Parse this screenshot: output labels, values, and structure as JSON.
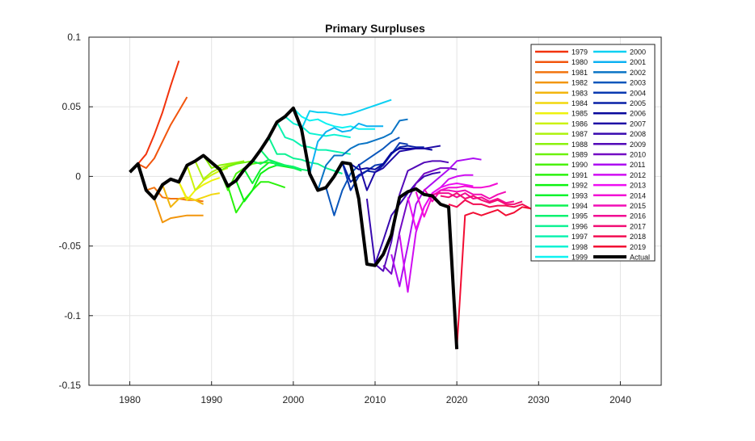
{
  "chart_data": {
    "type": "line",
    "title": "Primary Surpluses",
    "xlabel": "",
    "ylabel": "",
    "xlim": [
      1975,
      2045
    ],
    "ylim": [
      -0.15,
      0.1
    ],
    "xticks": [
      1980,
      1990,
      2000,
      2010,
      2020,
      2030,
      2040
    ],
    "xtick_labels": [
      "1980",
      "1990",
      "2000",
      "2010",
      "2020",
      "2030",
      "2040"
    ],
    "yticks": [
      0.1,
      0.05,
      0,
      -0.05,
      -0.1,
      -0.15
    ],
    "ytick_labels": [
      "0.1",
      "0.05",
      "0",
      "-0.05",
      "-0.1",
      "-0.15"
    ],
    "grid": true,
    "legend_position": "top-right",
    "actual": {
      "name": "Actual",
      "color": "#000000",
      "start": 1980,
      "values": [
        0.003,
        0.009,
        -0.01,
        -0.016,
        -0.006,
        -0.002,
        -0.004,
        0.008,
        0.011,
        0.015,
        0.01,
        0.005,
        -0.007,
        -0.003,
        0.005,
        0.011,
        0.019,
        0.028,
        0.039,
        0.043,
        0.049,
        0.034,
        0.002,
        -0.01,
        -0.008,
        0.0,
        0.01,
        0.009,
        -0.016,
        -0.063,
        -0.064,
        -0.056,
        -0.042,
        -0.015,
        -0.011,
        -0.009,
        -0.013,
        -0.014,
        -0.02,
        -0.022,
        -0.124
      ]
    },
    "series": [
      {
        "name": "1979",
        "start": 1981,
        "values": [
          0.009,
          0.016,
          0.03,
          0.046,
          0.065,
          0.083
        ]
      },
      {
        "name": "1980",
        "start": 1981,
        "values": [
          0.009,
          0.006,
          0.013,
          0.025,
          0.037,
          0.047,
          0.057
        ]
      },
      {
        "name": "1981",
        "start": 1982,
        "values": [
          -0.01,
          -0.008,
          -0.015,
          -0.016,
          -0.016,
          -0.017,
          -0.017,
          -0.018
        ]
      },
      {
        "name": "1982",
        "start": 1983,
        "values": [
          -0.016,
          -0.033,
          -0.03,
          -0.029,
          -0.028,
          -0.028,
          -0.028
        ]
      },
      {
        "name": "1983",
        "start": 1984,
        "values": [
          -0.006,
          -0.022,
          -0.016,
          -0.015,
          -0.017,
          -0.02
        ]
      },
      {
        "name": "1984",
        "start": 1985,
        "values": [
          -0.002,
          -0.004,
          -0.016,
          -0.017,
          -0.015,
          -0.013,
          -0.012
        ]
      },
      {
        "name": "1985",
        "start": 1986,
        "values": [
          -0.004,
          -0.017,
          -0.01,
          -0.006,
          -0.003,
          -0.001
        ]
      },
      {
        "name": "1986",
        "start": 1987,
        "values": [
          0.008,
          -0.01,
          -0.003,
          0.001,
          0.004,
          0.006
        ]
      },
      {
        "name": "1987",
        "start": 1988,
        "values": [
          0.011,
          -0.002,
          0.003,
          0.006,
          0.008,
          0.009
        ]
      },
      {
        "name": "1988",
        "start": 1989,
        "values": [
          0.015,
          0.006,
          0.008,
          0.009,
          0.01,
          0.011
        ]
      },
      {
        "name": "1989",
        "start": 1990,
        "values": [
          0.01,
          0.004,
          0.007,
          0.009,
          0.01,
          0.011
        ]
      },
      {
        "name": "1990",
        "start": 1991,
        "values": [
          0.005,
          -0.01,
          0.002,
          0.006,
          0.009,
          0.01,
          0.01
        ]
      },
      {
        "name": "1991",
        "start": 1992,
        "values": [
          -0.007,
          -0.026,
          -0.017,
          -0.01,
          -0.004,
          -0.004,
          -0.006,
          -0.008
        ]
      },
      {
        "name": "1992",
        "start": 1993,
        "values": [
          -0.003,
          -0.018,
          -0.01,
          0.002,
          0.006,
          0.008,
          0.007,
          0.006
        ]
      },
      {
        "name": "1993",
        "start": 1994,
        "values": [
          0.005,
          -0.005,
          0.005,
          0.01,
          0.009,
          0.008,
          0.007,
          0.005
        ]
      },
      {
        "name": "1994",
        "start": 1995,
        "values": [
          0.011,
          0.009,
          0.012,
          0.01,
          0.008,
          0.006,
          0.004
        ]
      },
      {
        "name": "1995",
        "start": 1996,
        "values": [
          0.019,
          0.012,
          0.008,
          0.008,
          0.007,
          0.005,
          0.004
        ]
      },
      {
        "name": "1996",
        "start": 1997,
        "values": [
          0.028,
          0.016,
          0.016,
          0.013,
          0.012,
          0.01,
          0.009,
          0.006,
          0.004,
          0.002
        ]
      },
      {
        "name": "1997",
        "start": 1998,
        "values": [
          0.039,
          0.028,
          0.026,
          0.022,
          0.021,
          0.019,
          0.019,
          0.018,
          0.017,
          0.016
        ]
      },
      {
        "name": "1998",
        "start": 1999,
        "values": [
          0.043,
          0.038,
          0.036,
          0.031,
          0.03,
          0.029,
          0.03,
          0.029,
          0.028
        ]
      },
      {
        "name": "1999",
        "start": 2000,
        "values": [
          0.049,
          0.043,
          0.04,
          0.041,
          0.038,
          0.036,
          0.035,
          0.036,
          0.034,
          0.034,
          0.034
        ]
      },
      {
        "name": "2000",
        "start": 2001,
        "values": [
          0.034,
          0.047,
          0.046,
          0.046,
          0.045,
          0.044,
          0.045,
          0.047,
          0.049,
          0.051,
          0.053,
          0.055
        ]
      },
      {
        "name": "2001",
        "start": 2002,
        "values": [
          0.002,
          0.025,
          0.032,
          0.035,
          0.032,
          0.033,
          0.038,
          0.036,
          0.036,
          0.036
        ]
      },
      {
        "name": "2002",
        "start": 2003,
        "values": [
          -0.01,
          0.008,
          0.015,
          0.015,
          0.02,
          0.023,
          0.024,
          0.026,
          0.028,
          0.031,
          0.04,
          0.041
        ]
      },
      {
        "name": "2003",
        "start": 2004,
        "values": [
          -0.008,
          -0.028,
          -0.01,
          0.002,
          0.008,
          0.012,
          0.016,
          0.02,
          0.025,
          0.028
        ]
      },
      {
        "name": "2004",
        "start": 2005,
        "values": [
          0.0,
          0.01,
          -0.01,
          0.0,
          0.004,
          0.008,
          0.009,
          0.016,
          0.024,
          0.023
        ]
      },
      {
        "name": "2005",
        "start": 2006,
        "values": [
          0.01,
          -0.004,
          0.001,
          0.004,
          0.003,
          0.008,
          0.016,
          0.021,
          0.022,
          0.021,
          0.021
        ]
      },
      {
        "name": "2006",
        "start": 2007,
        "values": [
          0.009,
          0.005,
          0.006,
          0.005,
          0.009,
          0.017,
          0.02,
          0.02,
          0.02,
          0.02,
          0.019
        ]
      },
      {
        "name": "2007",
        "start": 2008,
        "values": [
          0.009,
          -0.01,
          0.003,
          0.006,
          0.012,
          0.018,
          0.019,
          0.02,
          0.02,
          0.021,
          0.022
        ]
      },
      {
        "name": "2008",
        "start": 2009,
        "values": [
          -0.016,
          -0.063,
          -0.046,
          -0.028,
          -0.02,
          -0.012,
          -0.005,
          0.0,
          0.002,
          0.003
        ]
      },
      {
        "name": "2009",
        "start": 2010,
        "values": [
          -0.063,
          -0.068,
          -0.047,
          -0.013,
          0.004,
          0.007,
          0.01,
          0.011,
          0.011,
          0.01
        ]
      },
      {
        "name": "2010",
        "start": 2011,
        "values": [
          -0.064,
          -0.07,
          -0.04,
          -0.017,
          -0.005,
          0.002,
          0.004,
          0.006,
          0.006,
          0.005
        ]
      },
      {
        "name": "2011",
        "start": 2012,
        "values": [
          -0.056,
          -0.079,
          -0.05,
          -0.02,
          -0.01,
          -0.005,
          0.0,
          0.005,
          0.011,
          0.012,
          0.013,
          0.012
        ]
      },
      {
        "name": "2012",
        "start": 2013,
        "values": [
          -0.042,
          -0.083,
          -0.04,
          -0.022,
          -0.012,
          -0.008,
          -0.002,
          0.0,
          0.001,
          0.001
        ]
      },
      {
        "name": "2013",
        "start": 2014,
        "values": [
          -0.015,
          -0.038,
          -0.022,
          -0.012,
          -0.008,
          -0.006,
          -0.005,
          -0.006,
          -0.007
        ]
      },
      {
        "name": "2014",
        "start": 2015,
        "values": [
          -0.011,
          -0.029,
          -0.014,
          -0.01,
          -0.008,
          -0.008,
          -0.007,
          -0.008,
          -0.008,
          -0.007,
          -0.005
        ]
      },
      {
        "name": "2015",
        "start": 2016,
        "values": [
          -0.009,
          -0.018,
          -0.01,
          -0.01,
          -0.011,
          -0.01,
          -0.013,
          -0.013,
          -0.016,
          -0.013,
          -0.011
        ]
      },
      {
        "name": "2016",
        "start": 2017,
        "values": [
          -0.013,
          -0.012,
          -0.012,
          -0.015,
          -0.012,
          -0.016,
          -0.015,
          -0.018,
          -0.016,
          -0.019,
          -0.018
        ]
      },
      {
        "name": "2017",
        "start": 2018,
        "values": [
          -0.014,
          -0.015,
          -0.012,
          -0.016,
          -0.014,
          -0.017,
          -0.019,
          -0.017,
          -0.02,
          -0.02,
          -0.018
        ]
      },
      {
        "name": "2018",
        "start": 2019,
        "values": [
          -0.02,
          -0.022,
          -0.017,
          -0.02,
          -0.02,
          -0.022,
          -0.021,
          -0.021,
          -0.022,
          -0.02,
          -0.023
        ]
      },
      {
        "name": "2019",
        "start": 2020,
        "values": [
          -0.124,
          -0.028,
          -0.026,
          -0.028,
          -0.026,
          -0.024,
          -0.028,
          -0.026,
          -0.022,
          -0.023,
          -0.028
        ]
      }
    ]
  }
}
